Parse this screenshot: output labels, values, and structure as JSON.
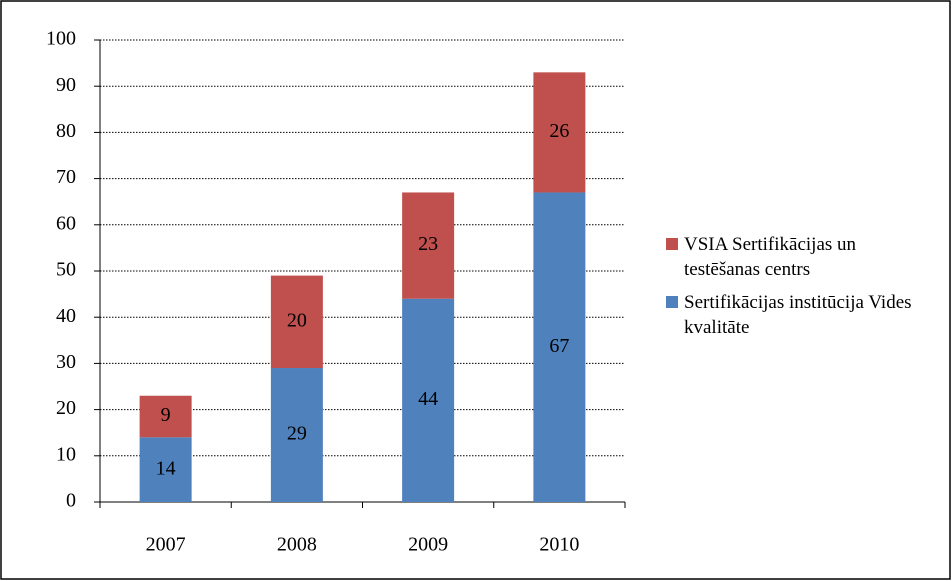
{
  "chart_data": {
    "type": "bar",
    "stacked": true,
    "categories": [
      "2007",
      "2008",
      "2009",
      "2010"
    ],
    "series": [
      {
        "name": "Sertifikācijas institūcija Vides kvalitāte",
        "color": "#4f81bd",
        "values": [
          14,
          29,
          44,
          67
        ]
      },
      {
        "name": "VSIA Sertifikācijas un testēšanas centrs",
        "color": "#c0504d",
        "values": [
          9,
          20,
          23,
          26
        ]
      }
    ],
    "ylim": [
      0,
      100
    ],
    "yticks": [
      0,
      10,
      20,
      30,
      40,
      50,
      60,
      70,
      80,
      90,
      100
    ],
    "grid": true,
    "legend": "right"
  }
}
